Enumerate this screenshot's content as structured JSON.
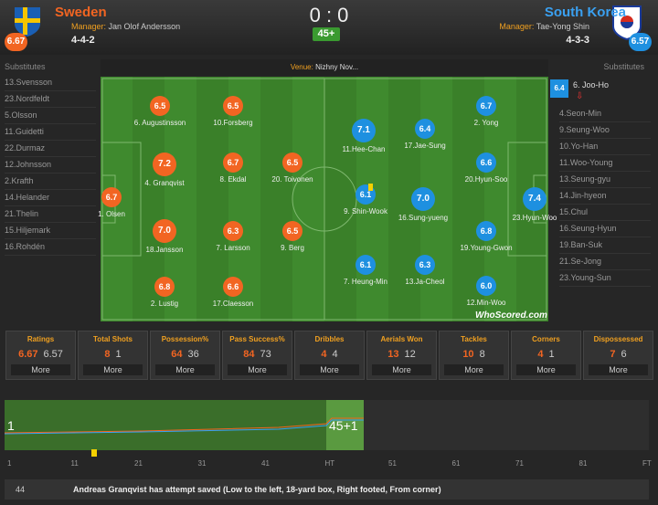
{
  "header": {
    "home": {
      "name": "Sweden",
      "rating": "6.67",
      "manager_label": "Manager:",
      "manager": "Jan Olof Andersson",
      "formation": "4-4-2"
    },
    "away": {
      "name": "South Korea",
      "rating": "6.57",
      "manager_label": "Manager:",
      "manager": "Tae-Yong Shin",
      "formation": "4-3-3"
    },
    "score": "0 : 0",
    "minute": "45+"
  },
  "substitutes": {
    "home_label": "Substitutes",
    "away_label": "Substitutes",
    "home": [
      "13.Svensson",
      "23.Nordfeldt",
      "5.Olsson",
      "11.Guidetti",
      "22.Durmaz",
      "12.Johnsson",
      "2.Krafth",
      "14.Helander",
      "21.Thelin",
      "15.Hiljemark",
      "16.Rohdén"
    ],
    "away_first": {
      "name": "6. Joo-Ho",
      "rating": "6.4"
    },
    "away": [
      "4.Seon-Min",
      "9.Seung-Woo",
      "10.Yo-Han",
      "11.Woo-Young",
      "13.Seung-gyu",
      "14.Jin-hyeon",
      "15.Chul",
      "16.Seung-Hyun",
      "19.Ban-Suk",
      "21.Se-Jong",
      "23.Young-Sun"
    ]
  },
  "venue": {
    "label": "Venue:",
    "name": "Nizhny Nov..."
  },
  "pitch": {
    "watermark": "WhoScored.com",
    "home": [
      {
        "rating": "6.5",
        "name": "6. Augustinsson"
      },
      {
        "rating": "6.5",
        "name": "10.Forsberg"
      },
      {
        "rating": "7.2",
        "name": "4. Granqvist"
      },
      {
        "rating": "6.7",
        "name": "8. Ekdal"
      },
      {
        "rating": "6.5",
        "name": "20. Toivonen"
      },
      {
        "rating": "6.7",
        "name": "1. Olsen"
      },
      {
        "rating": "7.0",
        "name": "18.Jansson"
      },
      {
        "rating": "6.3",
        "name": "7. Larsson"
      },
      {
        "rating": "6.5",
        "name": "9. Berg"
      },
      {
        "rating": "6.8",
        "name": "2. Lustig"
      },
      {
        "rating": "6.6",
        "name": "17.Claesson"
      }
    ],
    "away": [
      {
        "rating": "7.1",
        "name": "11.Hee-Chan"
      },
      {
        "rating": "6.4",
        "name": "17.Jae-Sung"
      },
      {
        "rating": "6.7",
        "name": "2. Yong"
      },
      {
        "rating": "6.6",
        "name": "20.Hyun-Soo"
      },
      {
        "rating": "6.1",
        "name": "9. Shin-Wook"
      },
      {
        "rating": "7.0",
        "name": "16.Sung-yueng"
      },
      {
        "rating": "7.4",
        "name": "23.Hyun-Woo"
      },
      {
        "rating": "6.8",
        "name": "19.Young-Gwon"
      },
      {
        "rating": "6.1",
        "name": "7. Heung-Min"
      },
      {
        "rating": "6.3",
        "name": "13.Ja-Cheol"
      },
      {
        "rating": "6.0",
        "name": "12.Min-Woo"
      }
    ]
  },
  "stats": {
    "more": "More",
    "items": [
      {
        "label": "Ratings",
        "home": 6.67,
        "away": 6.57
      },
      {
        "label": "Total Shots",
        "home": 8,
        "away": 1
      },
      {
        "label": "Possession%",
        "home": 64,
        "away": 36
      },
      {
        "label": "Pass Success%",
        "home": 84,
        "away": 73
      },
      {
        "label": "Dribbles",
        "home": 4,
        "away": 4
      },
      {
        "label": "Aerials Won",
        "home": 13,
        "away": 12
      },
      {
        "label": "Tackles",
        "home": 10,
        "away": 8
      },
      {
        "label": "Corners",
        "home": 4,
        "away": 1
      },
      {
        "label": "Dispossessed",
        "home": 7,
        "away": 6
      }
    ]
  },
  "timeline": {
    "start": "1",
    "current": "45+1",
    "axis": [
      "1",
      "11",
      "21",
      "31",
      "41",
      "HT",
      "51",
      "61",
      "71",
      "81",
      "FT"
    ]
  },
  "commentary": {
    "minute": "44",
    "text": "Andreas Granqvist has attempt saved (Low to the left, 18-yard box, Right footed, From corner)"
  }
}
